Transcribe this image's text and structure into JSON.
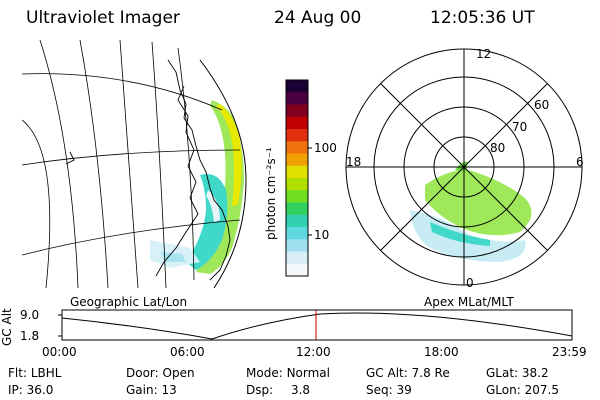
{
  "header": {
    "instrument": "Ultraviolet Imager",
    "date": "24 Aug 00",
    "time": "12:05:36 UT"
  },
  "colorbar": {
    "unit_label": "photon cm⁻²s⁻¹",
    "ticks": [
      "100",
      "10"
    ],
    "colors": [
      "#1a0033",
      "#4a0040",
      "#800020",
      "#c00000",
      "#e03010",
      "#f07010",
      "#f0a000",
      "#e0e000",
      "#b0e000",
      "#70e020",
      "#30d060",
      "#30d0b0",
      "#60d8e0",
      "#a0e0f0",
      "#d8eef8",
      "#f4f8fc"
    ]
  },
  "left_panel": {
    "label": "Geographic Lat/Lon"
  },
  "right_panel": {
    "label": "Apex MLat/MLT",
    "mlt_labels": {
      "top": "12",
      "left": "18",
      "right": "6",
      "bottom": "0"
    },
    "lat_labels": [
      "60",
      "70",
      "80"
    ]
  },
  "timeline": {
    "ylabel": "GC Alt",
    "yticks": [
      "9.0",
      "1.8"
    ],
    "xticks": [
      "00:00",
      "06:00",
      "12:00",
      "18:00",
      "23:59"
    ],
    "marker_color": "#cc0000"
  },
  "info": {
    "row1": [
      {
        "label": "Flt:",
        "value": "LBHL"
      },
      {
        "label": "Door:",
        "value": "Open"
      },
      {
        "label": "Mode:",
        "value": "Normal"
      },
      {
        "label": "GC Alt:",
        "value": "7.8 Re"
      },
      {
        "label": "GLat:",
        "value": "38.2"
      }
    ],
    "row2": [
      {
        "label": "IP:",
        "value": "36.0"
      },
      {
        "label": "Gain:",
        "value": "13"
      },
      {
        "label": "Dsp:",
        "value": "3.8"
      },
      {
        "label": "Seq:",
        "value": "39"
      },
      {
        "label": "GLon:",
        "value": "207.5"
      }
    ]
  }
}
